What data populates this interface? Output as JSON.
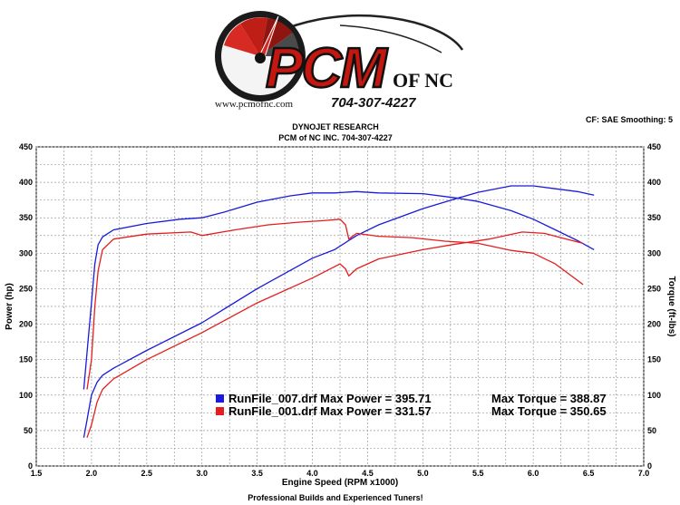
{
  "logo": {
    "brand": "PCM",
    "suffix": "OF NC",
    "phone": "704-307-4227",
    "url": "www.pcmofnc.com"
  },
  "header": {
    "line1": "DYNOJET RESEARCH",
    "line2": "PCM of NC INC. 704-307-4227",
    "settings": "CF: SAE  Smoothing: 5"
  },
  "footer": "Professional Builds and Experienced Tuners!",
  "chart_data": {
    "type": "line",
    "xlabel": "Engine Speed (RPM x1000)",
    "ylabel_left": "Power (hp)",
    "ylabel_right": "Torque (ft-lbs)",
    "xlim": [
      1.5,
      7.0
    ],
    "ylim": [
      0,
      450
    ],
    "xticks": [
      "1.5",
      "2.0",
      "2.5",
      "3.0",
      "3.5",
      "4.0",
      "4.5",
      "5.0",
      "5.5",
      "6.0",
      "6.5",
      "7.0"
    ],
    "yticks": [
      "0",
      "50",
      "100",
      "150",
      "200",
      "250",
      "300",
      "350",
      "400",
      "450"
    ],
    "grid": true,
    "legend_position": "lower-right",
    "legend": [
      {
        "file": "RunFile_007.drf",
        "power": "Max Power = 395.71",
        "torque": "Max Torque = 388.87",
        "color": "#1a1adc"
      },
      {
        "file": "RunFile_001.drf",
        "power": "Max Power = 331.57",
        "torque": "Max Torque = 350.65",
        "color": "#e41e1e"
      }
    ],
    "series": [
      {
        "kind": "torque",
        "color": "#1a1adc",
        "x": [
          1.93,
          1.96,
          2.0,
          2.03,
          2.06,
          2.1,
          2.2,
          2.5,
          2.8,
          3.0,
          3.2,
          3.5,
          3.8,
          4.0,
          4.2,
          4.4,
          4.6,
          5.0,
          5.3,
          5.5,
          5.8,
          6.0,
          6.2,
          6.4,
          6.55
        ],
        "y": [
          108,
          160,
          230,
          285,
          312,
          323,
          333,
          342,
          348,
          350,
          358,
          372,
          381,
          385,
          385,
          387,
          385,
          384,
          378,
          373,
          360,
          348,
          333,
          318,
          305
        ]
      },
      {
        "kind": "power",
        "color": "#1a1adc",
        "x": [
          1.93,
          1.96,
          2.0,
          2.05,
          2.1,
          2.2,
          2.5,
          3.0,
          3.5,
          4.0,
          4.2,
          4.4,
          4.6,
          5.0,
          5.3,
          5.5,
          5.7,
          5.8,
          6.0,
          6.2,
          6.4,
          6.55
        ],
        "y": [
          40,
          65,
          100,
          118,
          128,
          138,
          163,
          202,
          250,
          293,
          305,
          325,
          340,
          363,
          377,
          386,
          392,
          395,
          395,
          391,
          387,
          382
        ]
      },
      {
        "kind": "torque",
        "color": "#e41e1e",
        "x": [
          1.96,
          2.0,
          2.03,
          2.06,
          2.1,
          2.2,
          2.5,
          2.9,
          3.0,
          3.3,
          3.6,
          3.9,
          4.1,
          4.25,
          4.3,
          4.33,
          4.4,
          4.6,
          4.9,
          5.2,
          5.5,
          5.8,
          6.0,
          6.2,
          6.45
        ],
        "y": [
          108,
          150,
          225,
          275,
          305,
          320,
          327,
          330,
          325,
          333,
          340,
          344,
          346,
          348,
          340,
          320,
          328,
          324,
          322,
          317,
          314,
          304,
          300,
          285,
          256
        ]
      },
      {
        "kind": "power",
        "color": "#e41e1e",
        "x": [
          1.96,
          2.0,
          2.05,
          2.1,
          2.2,
          2.5,
          3.0,
          3.5,
          4.0,
          4.25,
          4.3,
          4.33,
          4.4,
          4.6,
          5.0,
          5.3,
          5.6,
          5.9,
          6.1,
          6.3,
          6.45
        ],
        "y": [
          40,
          58,
          90,
          108,
          123,
          150,
          188,
          230,
          265,
          285,
          278,
          268,
          278,
          292,
          305,
          313,
          320,
          330,
          328,
          320,
          314
        ]
      }
    ]
  }
}
